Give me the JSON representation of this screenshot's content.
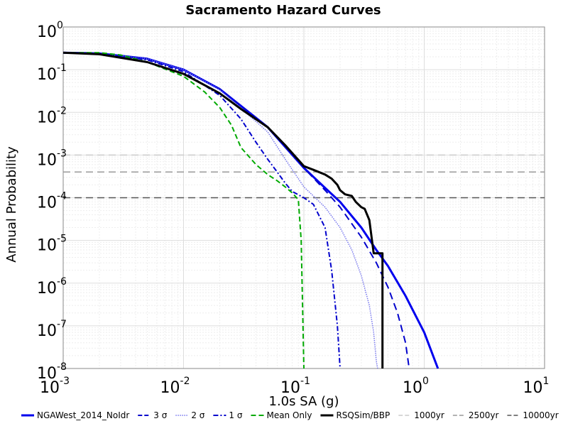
{
  "chart_data": {
    "type": "line",
    "title": "Sacramento Hazard Curves",
    "xlabel": "1.0s SA (g)",
    "ylabel": "Annual Probability",
    "x_scale": "log",
    "y_scale": "log",
    "xlim": [
      0.001,
      10
    ],
    "ylim": [
      1e-08,
      1
    ],
    "grid": true,
    "legend_placement": "bottom",
    "x_ticks": [
      {
        "base": "10",
        "exp": "-3",
        "value": 0.001
      },
      {
        "base": "10",
        "exp": "-2",
        "value": 0.01
      },
      {
        "base": "10",
        "exp": "-1",
        "value": 0.1
      },
      {
        "base": "10",
        "exp": "0",
        "value": 1
      },
      {
        "base": "10",
        "exp": "1",
        "value": 10
      }
    ],
    "y_ticks": [
      {
        "base": "10",
        "exp": "0",
        "value": 1
      },
      {
        "base": "10",
        "exp": "-1",
        "value": 0.1
      },
      {
        "base": "10",
        "exp": "-2",
        "value": 0.01
      },
      {
        "base": "10",
        "exp": "-3",
        "value": 0.001
      },
      {
        "base": "10",
        "exp": "-4",
        "value": 0.0001
      },
      {
        "base": "10",
        "exp": "-5",
        "value": 1e-05
      },
      {
        "base": "10",
        "exp": "-6",
        "value": 1e-06
      },
      {
        "base": "10",
        "exp": "-7",
        "value": 1e-07
      },
      {
        "base": "10",
        "exp": "-8",
        "value": 1e-08
      }
    ],
    "series": [
      {
        "name": "NGAWest_2014_NoIdr",
        "color": "#0000ee",
        "dash": "solid",
        "width": 3,
        "x": [
          0.001,
          0.002,
          0.005,
          0.01,
          0.02,
          0.05,
          0.1,
          0.15,
          0.2,
          0.3,
          0.4,
          0.5,
          0.7,
          1,
          1.3
        ],
        "y": [
          0.25,
          0.24,
          0.18,
          0.1,
          0.035,
          0.0045,
          0.0005,
          0.00017,
          8e-05,
          2e-05,
          6e-06,
          2.5e-06,
          5e-07,
          7e-08,
          1e-08
        ]
      },
      {
        "name": "3 σ",
        "color": "#0000cc",
        "dash": "long",
        "width": 2,
        "x": [
          0.001,
          0.002,
          0.005,
          0.01,
          0.02,
          0.05,
          0.1,
          0.15,
          0.2,
          0.3,
          0.4,
          0.5,
          0.6,
          0.7,
          0.75
        ],
        "y": [
          0.25,
          0.24,
          0.18,
          0.1,
          0.035,
          0.0045,
          0.0005,
          0.00015,
          6e-05,
          1.2e-05,
          3e-06,
          8e-07,
          2e-07,
          4e-08,
          1e-08
        ]
      },
      {
        "name": "2 σ",
        "color": "#7777ee",
        "dash": "dotted",
        "width": 1.5,
        "x": [
          0.001,
          0.002,
          0.005,
          0.01,
          0.02,
          0.05,
          0.07,
          0.1,
          0.15,
          0.2,
          0.25,
          0.3,
          0.35,
          0.38,
          0.4,
          0.41
        ],
        "y": [
          0.25,
          0.24,
          0.18,
          0.1,
          0.034,
          0.0035,
          0.0008,
          0.00018,
          6e-05,
          2e-05,
          6e-06,
          1.5e-06,
          3e-07,
          7e-08,
          1.5e-08,
          1e-08
        ]
      },
      {
        "name": "1 σ",
        "color": "#0000cc",
        "dash": "dashdot",
        "width": 2,
        "x": [
          0.001,
          0.002,
          0.005,
          0.01,
          0.02,
          0.03,
          0.04,
          0.05,
          0.06,
          0.07,
          0.08,
          0.1,
          0.12,
          0.15,
          0.17,
          0.19,
          0.2
        ],
        "y": [
          0.25,
          0.24,
          0.17,
          0.09,
          0.025,
          0.007,
          0.002,
          0.0008,
          0.0004,
          0.00022,
          0.00014,
          0.0001,
          7e-05,
          2e-05,
          2e-06,
          1e-07,
          1e-08
        ]
      },
      {
        "name": "Mean Only",
        "color": "#00aa00",
        "dash": "dash",
        "width": 2,
        "x": [
          0.001,
          0.002,
          0.003,
          0.005,
          0.01,
          0.015,
          0.02,
          0.025,
          0.03,
          0.04,
          0.05,
          0.06,
          0.07,
          0.08,
          0.09,
          0.095,
          0.1
        ],
        "y": [
          0.25,
          0.25,
          0.22,
          0.15,
          0.07,
          0.03,
          0.013,
          0.005,
          0.0015,
          0.0006,
          0.00035,
          0.00025,
          0.00018,
          0.00013,
          9e-05,
          1e-05,
          1e-08
        ]
      },
      {
        "name": "RSQSim/BBP",
        "color": "#000000",
        "dash": "solid",
        "width": 3,
        "x": [
          0.001,
          0.002,
          0.005,
          0.01,
          0.02,
          0.03,
          0.05,
          0.07,
          0.1,
          0.12,
          0.15,
          0.17,
          0.19,
          0.2,
          0.22,
          0.25,
          0.27,
          0.3,
          0.32,
          0.35,
          0.38,
          0.4,
          0.42,
          0.44,
          0.45,
          0.45,
          0.45
        ],
        "y": [
          0.25,
          0.23,
          0.15,
          0.08,
          0.028,
          0.012,
          0.0045,
          0.0017,
          0.00055,
          0.00045,
          0.00035,
          0.00028,
          0.0002,
          0.00015,
          0.00012,
          0.00011,
          8e-05,
          6e-05,
          5.5e-05,
          3e-05,
          5e-06,
          5e-06,
          5e-06,
          5e-06,
          5e-06,
          1e-07,
          1e-08
        ]
      },
      {
        "name": "1000yr",
        "color": "#cccccc",
        "dash": "long",
        "width": 1.5,
        "hline": 0.001,
        "x": [
          0.001,
          10
        ],
        "y": [
          0.001,
          0.001
        ]
      },
      {
        "name": "2500yr",
        "color": "#999999",
        "dash": "long",
        "width": 1.5,
        "hline": 0.0004,
        "x": [
          0.001,
          10
        ],
        "y": [
          0.0004,
          0.0004
        ]
      },
      {
        "name": "10000yr",
        "color": "#555555",
        "dash": "long",
        "width": 1.5,
        "hline": 0.0001,
        "x": [
          0.001,
          10
        ],
        "y": [
          0.0001,
          0.0001
        ]
      }
    ]
  }
}
